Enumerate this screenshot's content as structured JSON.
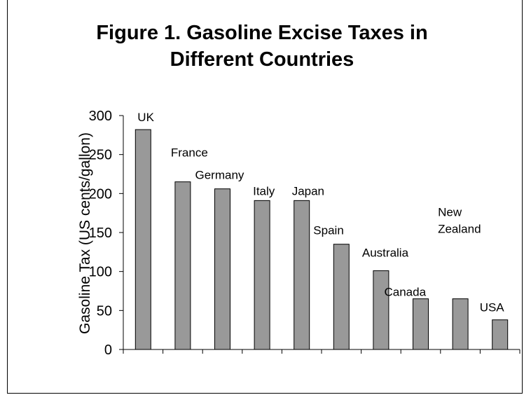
{
  "chart_data": {
    "type": "bar",
    "title": "Figure 1. Gasoline Excise Taxes in Different Countries",
    "title_lines": [
      "Figure 1. Gasoline Excise Taxes in",
      "Different Countries"
    ],
    "ylabel": "Gasoline Tax (US cents/gallon)",
    "xlabel": "",
    "ylim": [
      0,
      300
    ],
    "yticks": [
      0,
      50,
      100,
      150,
      200,
      250,
      300
    ],
    "grid": false,
    "legend": "none",
    "categories": [
      "UK",
      "France",
      "Germany",
      "Italy",
      "Japan",
      "Spain",
      "Australia",
      "Canada",
      "New Zealand",
      "USA"
    ],
    "label_lines": [
      [
        "UK"
      ],
      [
        "France"
      ],
      [
        "Germany"
      ],
      [
        "Italy"
      ],
      [
        "Japan"
      ],
      [
        "Spain"
      ],
      [
        "Australia"
      ],
      [
        "Canada"
      ],
      [
        "New",
        "Zealand"
      ],
      [
        "USA"
      ]
    ],
    "values": [
      282,
      215,
      206,
      191,
      191,
      135,
      101,
      65,
      65,
      38
    ],
    "bar_color": "#999999"
  }
}
